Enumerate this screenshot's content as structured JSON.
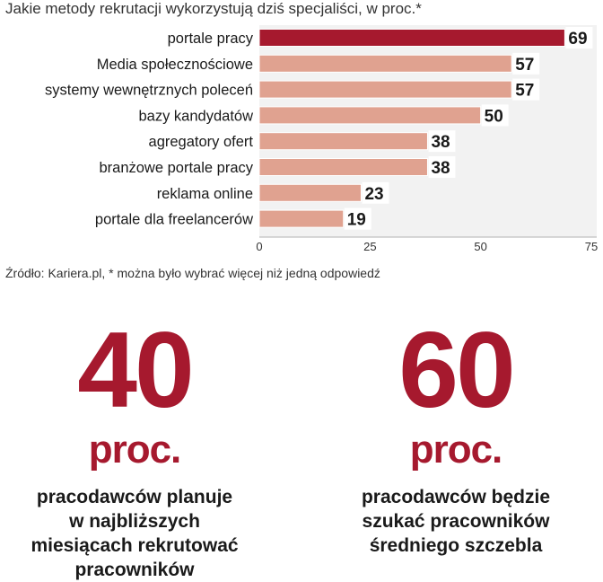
{
  "title": "Jakie metody rekrutacji wykorzystują dziś specjaliści, w proc.*",
  "source": "Źródło: Kariera.pl, * można było wybrać więcej niż jedną odpowiedź",
  "colors": {
    "highlight": "#a6192e",
    "bar": "#e0a290",
    "stat": "#a6192e"
  },
  "chart_data": {
    "type": "bar",
    "orientation": "horizontal",
    "title": "Jakie metody rekrutacji wykorzystują dziś specjaliści, w proc.*",
    "categories": [
      "portale pracy",
      "Media społecznościowe",
      "systemy wewnętrznych poleceń",
      "bazy kandydatów",
      "agregatory ofert",
      "branżowe portale pracy",
      "reklama online",
      "portale dla freelancerów"
    ],
    "values": [
      69,
      57,
      57,
      50,
      38,
      38,
      23,
      19
    ],
    "highlighted_index": 0,
    "xlim": [
      0,
      75
    ],
    "xticks": [
      0,
      25,
      50,
      75
    ],
    "grid": false
  },
  "stats": [
    {
      "number": "40",
      "unit": "proc.",
      "description": "pracodawców planuje\nw najbliższych\nmiesiącach rekrutować\npracowników"
    },
    {
      "number": "60",
      "unit": "proc.",
      "description": "pracodawców będzie\nszukać pracowników\nśredniego szczebla"
    }
  ]
}
